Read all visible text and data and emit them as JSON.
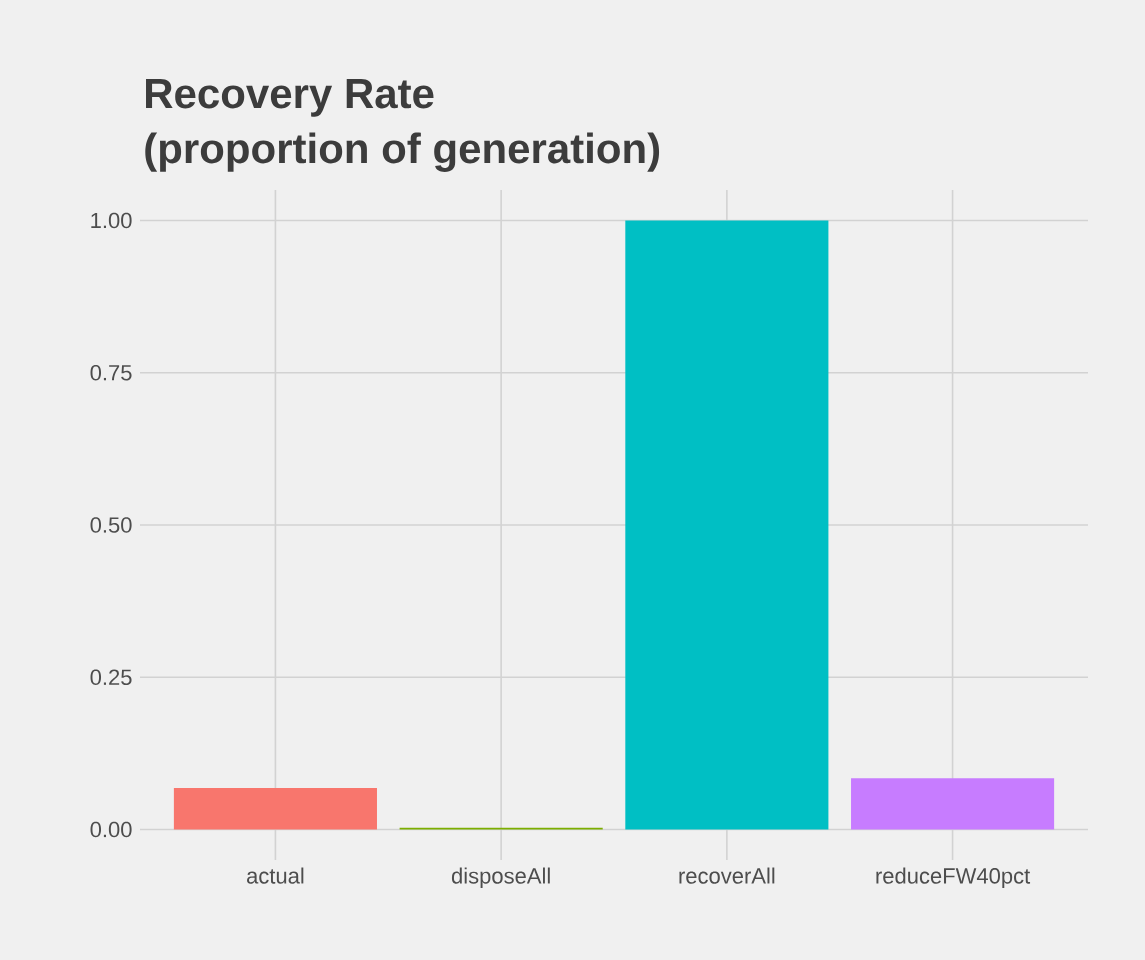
{
  "chart_data": {
    "type": "bar",
    "title": "Recovery Rate",
    "subtitle": "(proportion of generation)",
    "categories": [
      "actual",
      "disposeAll",
      "recoverAll",
      "reduceFW40pct"
    ],
    "values": [
      0.068,
      0.003,
      1.0,
      0.084
    ],
    "colors": [
      "#f8766d",
      "#7cae00",
      "#00bfc4",
      "#c77cff"
    ],
    "ylim": [
      -0.05,
      1.05
    ],
    "yticks": [
      {
        "value": 0,
        "label": "0.00"
      },
      {
        "value": 0.25,
        "label": "0.25"
      },
      {
        "value": 0.5,
        "label": "0.50"
      },
      {
        "value": 0.75,
        "label": "0.75"
      },
      {
        "value": 1,
        "label": "1.00"
      }
    ],
    "grid": true
  }
}
